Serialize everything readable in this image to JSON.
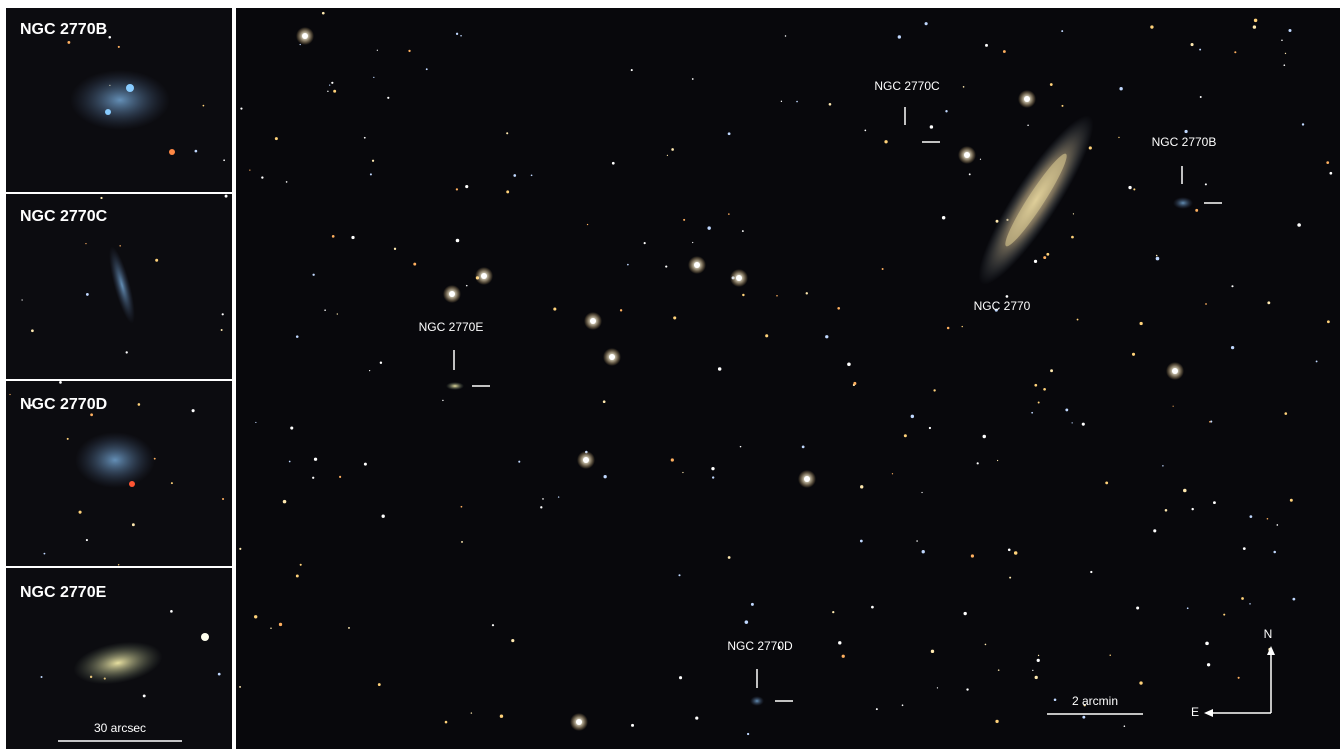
{
  "insets": [
    {
      "label": "NGC 2770B"
    },
    {
      "label": "NGC 2770C"
    },
    {
      "label": "NGC 2770D"
    },
    {
      "label": "NGC 2770E"
    }
  ],
  "inset_scale": "30 arcsec",
  "main": {
    "labels": {
      "c": "NGC 2770C",
      "b": "NGC 2770B",
      "main": "NGC 2770",
      "e": "NGC 2770E",
      "d": "NGC 2770D"
    },
    "scale": "2 arcmin",
    "compass": {
      "north": "N",
      "east": "E"
    }
  }
}
